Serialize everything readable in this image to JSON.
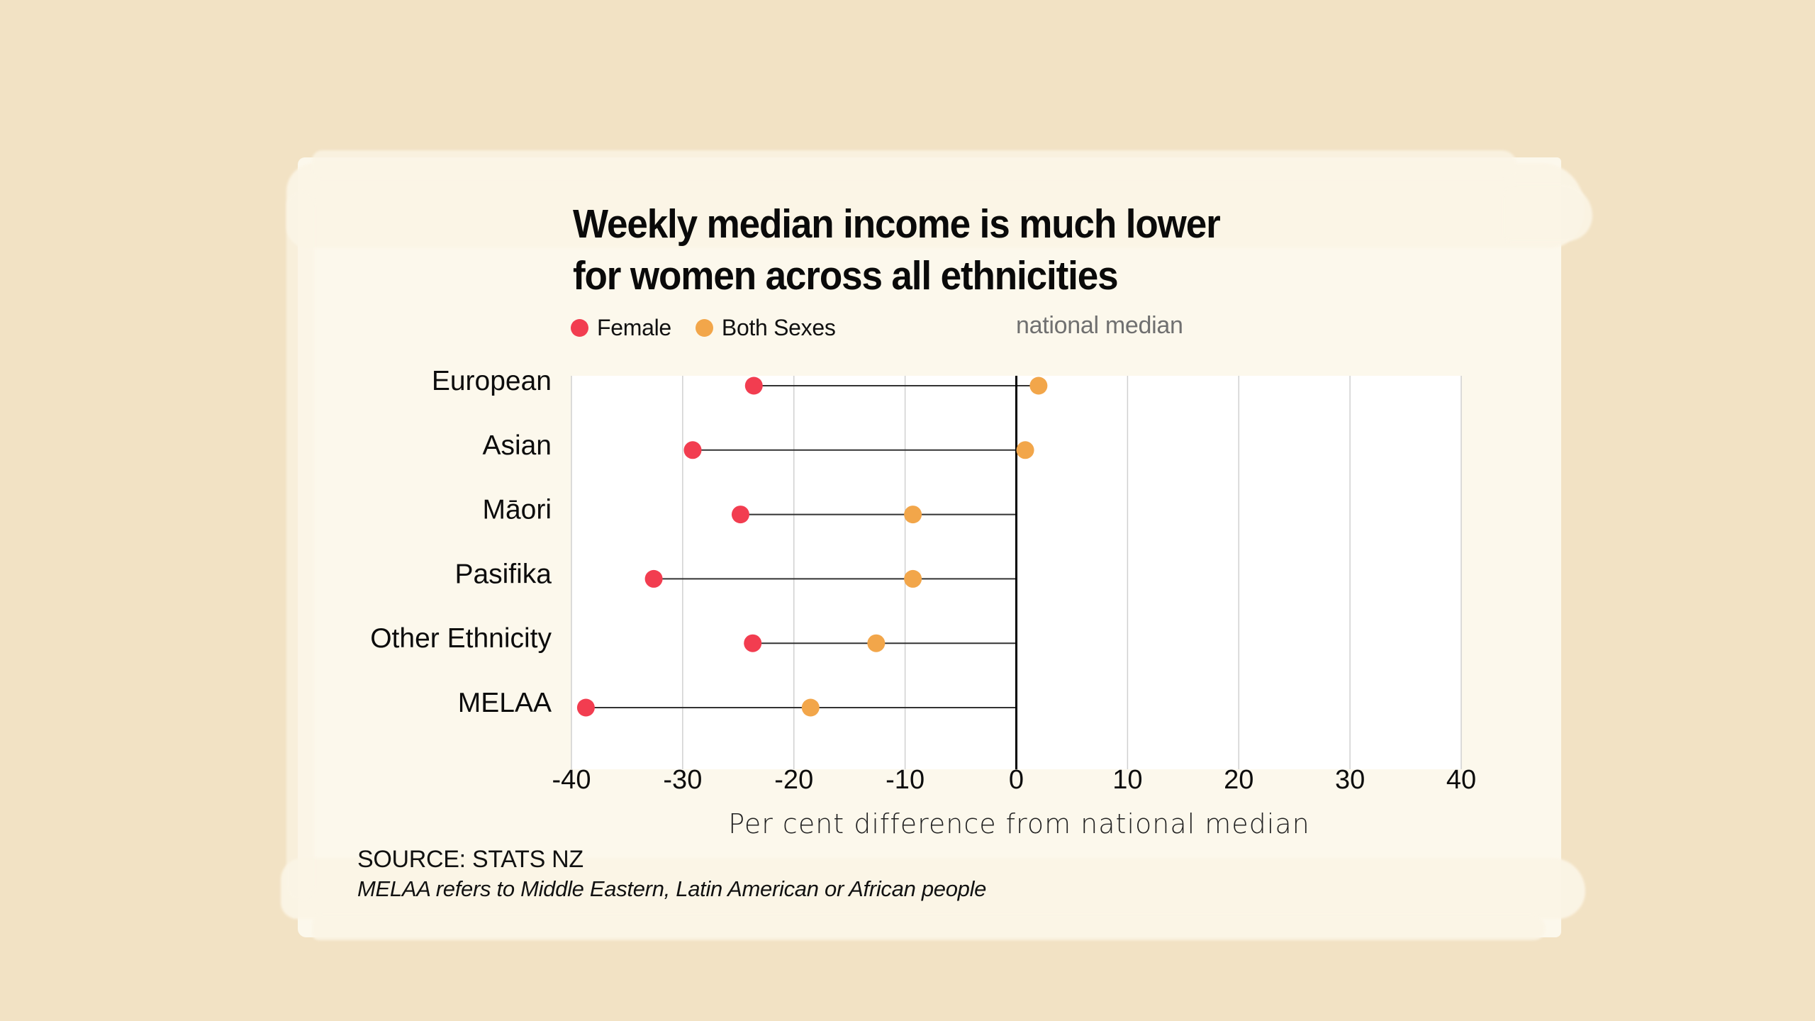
{
  "colors": {
    "background": "#F2E2C4",
    "paper": "#FCF8EC",
    "female": "#F23D50",
    "both_sexes": "#F2A64A",
    "gridline": "#D0D0D0",
    "zero_line": "#000000",
    "connector": "#333333",
    "median_label": "#707070"
  },
  "header": {
    "title_line1": "Weekly median income is much lower",
    "title_line2": "for women across all ethnicities"
  },
  "legend": {
    "items": [
      {
        "label": "Female",
        "color": "#F23D50"
      },
      {
        "label": "Both Sexes",
        "color": "#F2A64A"
      }
    ],
    "reference_label": "national median"
  },
  "footer": {
    "source": "SOURCE: STATS NZ",
    "note": "MELAA refers to Middle Eastern, Latin American or African people"
  },
  "chart_data": {
    "type": "dumbbell",
    "title": "Weekly median income is much lower for women across all ethnicities",
    "xlabel": "Per cent difference from national median",
    "ylabel": "",
    "xlim": [
      -40,
      40
    ],
    "xticks": [
      -40,
      -30,
      -20,
      -10,
      0,
      10,
      20,
      30,
      40
    ],
    "tick_labels": [
      "-40",
      "-30",
      "-20",
      "-10",
      "0",
      "10",
      "20",
      "30",
      "40"
    ],
    "grid": "vertical",
    "reference_line": {
      "x": 0,
      "label": "national median"
    },
    "legend_position": "top-left",
    "categories": [
      "European",
      "Asian",
      "Māori",
      "Pasifika",
      "Other Ethnicity",
      "MELAA"
    ],
    "series": [
      {
        "name": "Female",
        "color": "#F23D50",
        "values": [
          -23.6,
          -29.1,
          -24.8,
          -32.6,
          -23.7,
          -38.7
        ]
      },
      {
        "name": "Both Sexes",
        "color": "#F2A64A",
        "values": [
          2.0,
          0.8,
          -9.3,
          -9.3,
          -12.6,
          -18.5
        ]
      }
    ],
    "source": "SOURCE: STATS NZ",
    "note": "MELAA refers to Middle Eastern, Latin American or African people"
  }
}
